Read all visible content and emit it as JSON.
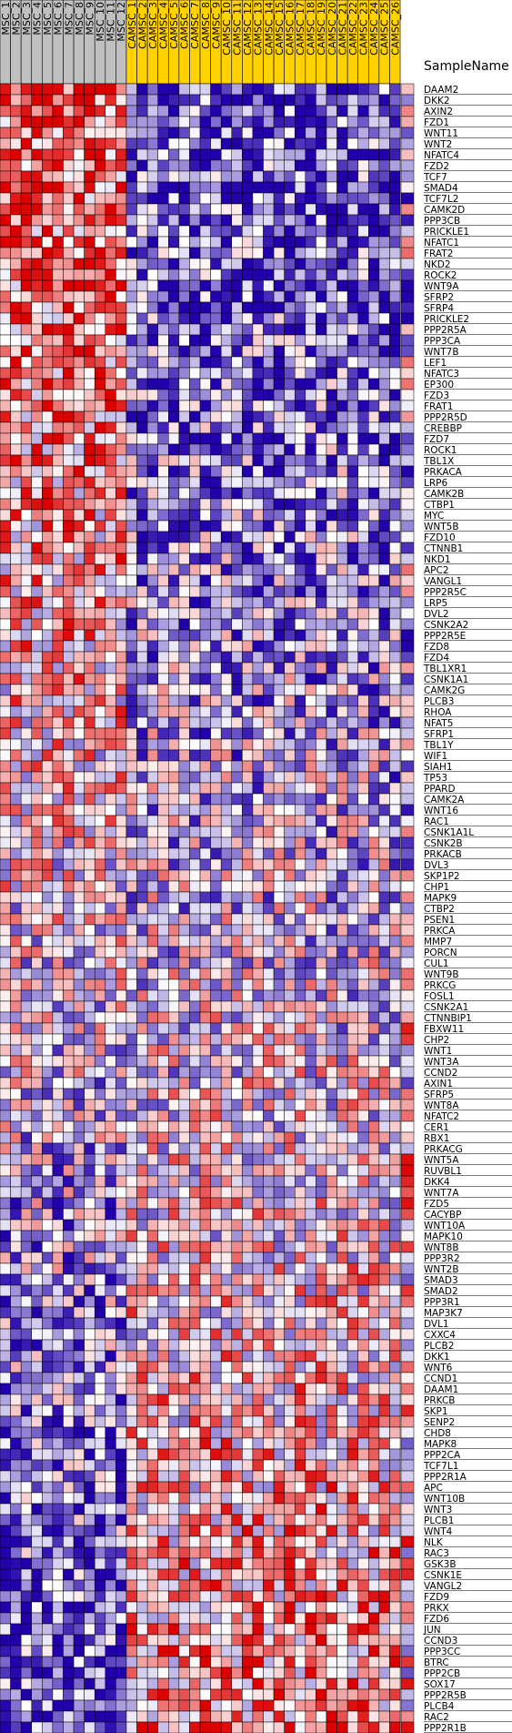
{
  "chart_data": {
    "type": "heatmap",
    "sample_header": "SampleName",
    "columns": [
      "MSC_1",
      "MSC_2",
      "MSC_3",
      "MSC_4",
      "MSC_5",
      "MSC_6",
      "MSC_7",
      "MSC_8",
      "MSC_9",
      "MSC_10",
      "MSC_11",
      "MSC_12",
      "CAMSC_1",
      "CAMSC_2",
      "CAMSC_3",
      "CAMSC_4",
      "CAMSC_5",
      "CAMSC_6",
      "CAMSC_7",
      "CAMSC_8",
      "CAMSC_9",
      "CAMSC_10",
      "CAMSC_11",
      "CAMSC_12",
      "CAMSC_13",
      "CAMSC_14",
      "CAMSC_15",
      "CAMSC_16",
      "CAMSC_17",
      "CAMSC_18",
      "CAMSC_19",
      "CAMSC_20",
      "CAMSC_21",
      "CAMSC_22",
      "CAMSC_23",
      "CAMSC_24",
      "CAMSC_25",
      "CAMSC_26"
    ],
    "column_groups": [
      {
        "name": "MSC",
        "count": 12,
        "color": "#c0c0c0"
      },
      {
        "name": "CAMSC",
        "count": 26,
        "color": "#ffd200"
      }
    ],
    "rows": [
      "DAAM2",
      "DKK2",
      "AXIN2",
      "FZD1",
      "WNT11",
      "WNT2",
      "NFATC4",
      "FZD2",
      "TCF7",
      "SMAD4",
      "TCF7L2",
      "CAMK2D",
      "PPP3CB",
      "PRICKLE1",
      "NFATC1",
      "FRAT2",
      "NKD2",
      "ROCK2",
      "WNT9A",
      "SFRP2",
      "SFRP4",
      "PRICKLE2",
      "PPP2R5A",
      "PPP3CA",
      "WNT7B",
      "LEF1",
      "NFATC3",
      "EP300",
      "FZD3",
      "FRAT1",
      "PPP2R5D",
      "CREBBP",
      "FZD7",
      "ROCK1",
      "TBL1X",
      "PRKACA",
      "LRP6",
      "CAMK2B",
      "CTBP1",
      "MYC",
      "WNT5B",
      "FZD10",
      "CTNNB1",
      "NKD1",
      "APC2",
      "VANGL1",
      "PPP2R5C",
      "LRP5",
      "DVL2",
      "CSNK2A2",
      "PPP2R5E",
      "FZD8",
      "FZD4",
      "TBL1XR1",
      "CSNK1A1",
      "CAMK2G",
      "PLCB3",
      "RHOA",
      "NFAT5",
      "SFRP1",
      "TBL1Y",
      "WIF1",
      "SIAH1",
      "TP53",
      "PPARD",
      "CAMK2A",
      "WNT16",
      "RAC1",
      "CSNK1A1L",
      "CSNK2B",
      "PRKACB",
      "DVL3",
      "SKP1P2",
      "CHP1",
      "MAPK9",
      "CTBP2",
      "PSEN1",
      "PRKCA",
      "MMP7",
      "PORCN",
      "CUL1",
      "WNT9B",
      "PRKCG",
      "FOSL1",
      "CSNK2A1",
      "CTNNBIP1",
      "FBXW11",
      "CHP2",
      "WNT1",
      "WNT3A",
      "CCND2",
      "AXIN1",
      "SFRP5",
      "WNT8A",
      "NFATC2",
      "CER1",
      "RBX1",
      "PRKACG",
      "WNT5A",
      "RUVBL1",
      "DKK4",
      "WNT7A",
      "FZD5",
      "CACYBP",
      "WNT10A",
      "MAPK10",
      "WNT8B",
      "PPP3R2",
      "WNT2B",
      "SMAD3",
      "SMAD2",
      "PPP3R1",
      "MAP3K7",
      "DVL1",
      "CXXC4",
      "PLCB2",
      "DKK1",
      "WNT6",
      "CCND1",
      "DAAM1",
      "PRKCB",
      "SKP1",
      "SENP2",
      "CHD8",
      "MAPK8",
      "PPP2CA",
      "TCF7L1",
      "PPP2R1A",
      "APC",
      "WNT10B",
      "WNT3",
      "PLCB1",
      "WNT4",
      "NLK",
      "RAC3",
      "GSK3B",
      "CSNK1E",
      "VANGL2",
      "FZD9",
      "PRKX",
      "FZD6",
      "JUN",
      "CCND3",
      "PPP3CC",
      "BTRC",
      "PPP2CB",
      "SOX17",
      "PPP2R5B",
      "PLCB4",
      "RAC2",
      "PPP2R1B"
    ],
    "value_range": [
      0,
      1
    ],
    "value_note": "0 = blue (low), 0.5 = white, 1 = red (high)",
    "colors": {
      "low": "#2200aa",
      "mid": "#ffffff",
      "high": "#dd0000",
      "grid": "#000000"
    },
    "side_bar_note": "rightmost narrow column shows per-row indicator"
  }
}
